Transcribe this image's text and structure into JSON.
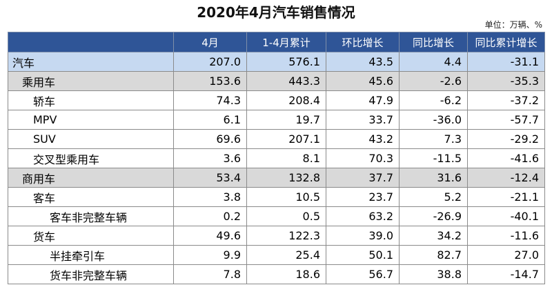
{
  "title": "2020年4月汽车销售情况",
  "unit": "单位：万辆、%",
  "columns": [
    "",
    "4月",
    "1-4月累计",
    "环比增长",
    "同比增长",
    "同比累计增长"
  ],
  "rows": [
    {
      "name": "汽车",
      "level": 0,
      "values": [
        "207.0",
        "576.1",
        "43.5",
        "4.4",
        "-31.1"
      ]
    },
    {
      "name": "乘用车",
      "level": 1,
      "values": [
        "153.6",
        "443.3",
        "45.6",
        "-2.6",
        "-35.3"
      ]
    },
    {
      "name": "轿车",
      "level": 2,
      "values": [
        "74.3",
        "208.4",
        "47.9",
        "-6.2",
        "-37.2"
      ]
    },
    {
      "name": "MPV",
      "level": 2,
      "values": [
        "6.1",
        "19.7",
        "33.7",
        "-36.0",
        "-57.7"
      ]
    },
    {
      "name": "SUV",
      "level": 2,
      "values": [
        "69.6",
        "207.1",
        "43.2",
        "7.3",
        "-29.2"
      ]
    },
    {
      "name": "交叉型乘用车",
      "level": 2,
      "values": [
        "3.6",
        "8.1",
        "70.3",
        "-11.5",
        "-41.6"
      ]
    },
    {
      "name": "商用车",
      "level": 1,
      "values": [
        "53.4",
        "132.8",
        "37.7",
        "31.6",
        "-12.4"
      ]
    },
    {
      "name": "客车",
      "level": 2,
      "values": [
        "3.8",
        "10.5",
        "23.7",
        "5.2",
        "-21.1"
      ]
    },
    {
      "name": "客车非完整车辆",
      "level": 3,
      "values": [
        "0.2",
        "0.5",
        "63.2",
        "-26.9",
        "-40.1"
      ]
    },
    {
      "name": "货车",
      "level": 2,
      "values": [
        "49.6",
        "122.3",
        "39.0",
        "34.2",
        "-11.6"
      ]
    },
    {
      "name": "半挂牵引车",
      "level": 3,
      "values": [
        "9.9",
        "25.4",
        "50.1",
        "82.7",
        "27.0"
      ]
    },
    {
      "name": "货车非完整车辆",
      "level": 3,
      "values": [
        "7.8",
        "18.6",
        "56.7",
        "38.8",
        "-14.7"
      ]
    }
  ],
  "colors": {
    "header_bg": "#2f5597",
    "level0_bg": "#c6d9f1",
    "level1_bg": "#d9d9d9"
  }
}
